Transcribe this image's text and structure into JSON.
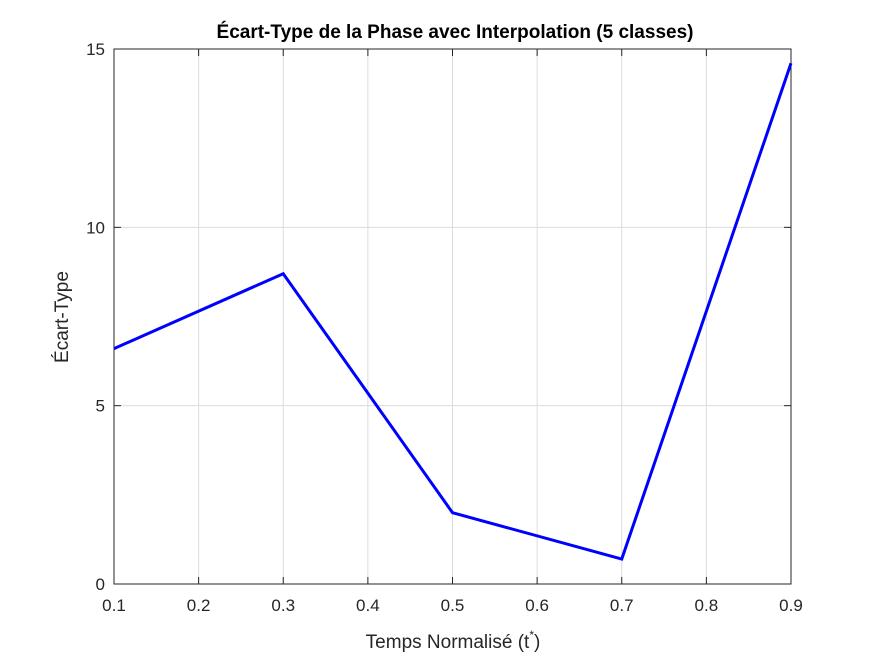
{
  "chart_data": {
    "type": "line",
    "title": "Écart-Type de la Phase avec Interpolation (5 classes)",
    "xlabel": "Temps Normalisé (t",
    "xlabel_superscript": "*",
    "xlabel_suffix": ")",
    "ylabel": "Écart-Type",
    "xlim": [
      0.1,
      0.9
    ],
    "ylim": [
      0,
      15
    ],
    "xticks": [
      0.1,
      0.2,
      0.3,
      0.4,
      0.5,
      0.6,
      0.7,
      0.8,
      0.9
    ],
    "xtick_labels": [
      "0.1",
      "0.2",
      "0.3",
      "0.4",
      "0.5",
      "0.6",
      "0.7",
      "0.8",
      "0.9"
    ],
    "yticks": [
      0,
      5,
      10,
      15
    ],
    "ytick_labels": [
      "0",
      "5",
      "10",
      "15"
    ],
    "grid": true,
    "series": [
      {
        "color": "#0000ff",
        "x": [
          0.1,
          0.3,
          0.5,
          0.7,
          0.9
        ],
        "y": [
          6.6,
          8.7,
          2.0,
          0.7,
          14.6
        ]
      }
    ]
  }
}
